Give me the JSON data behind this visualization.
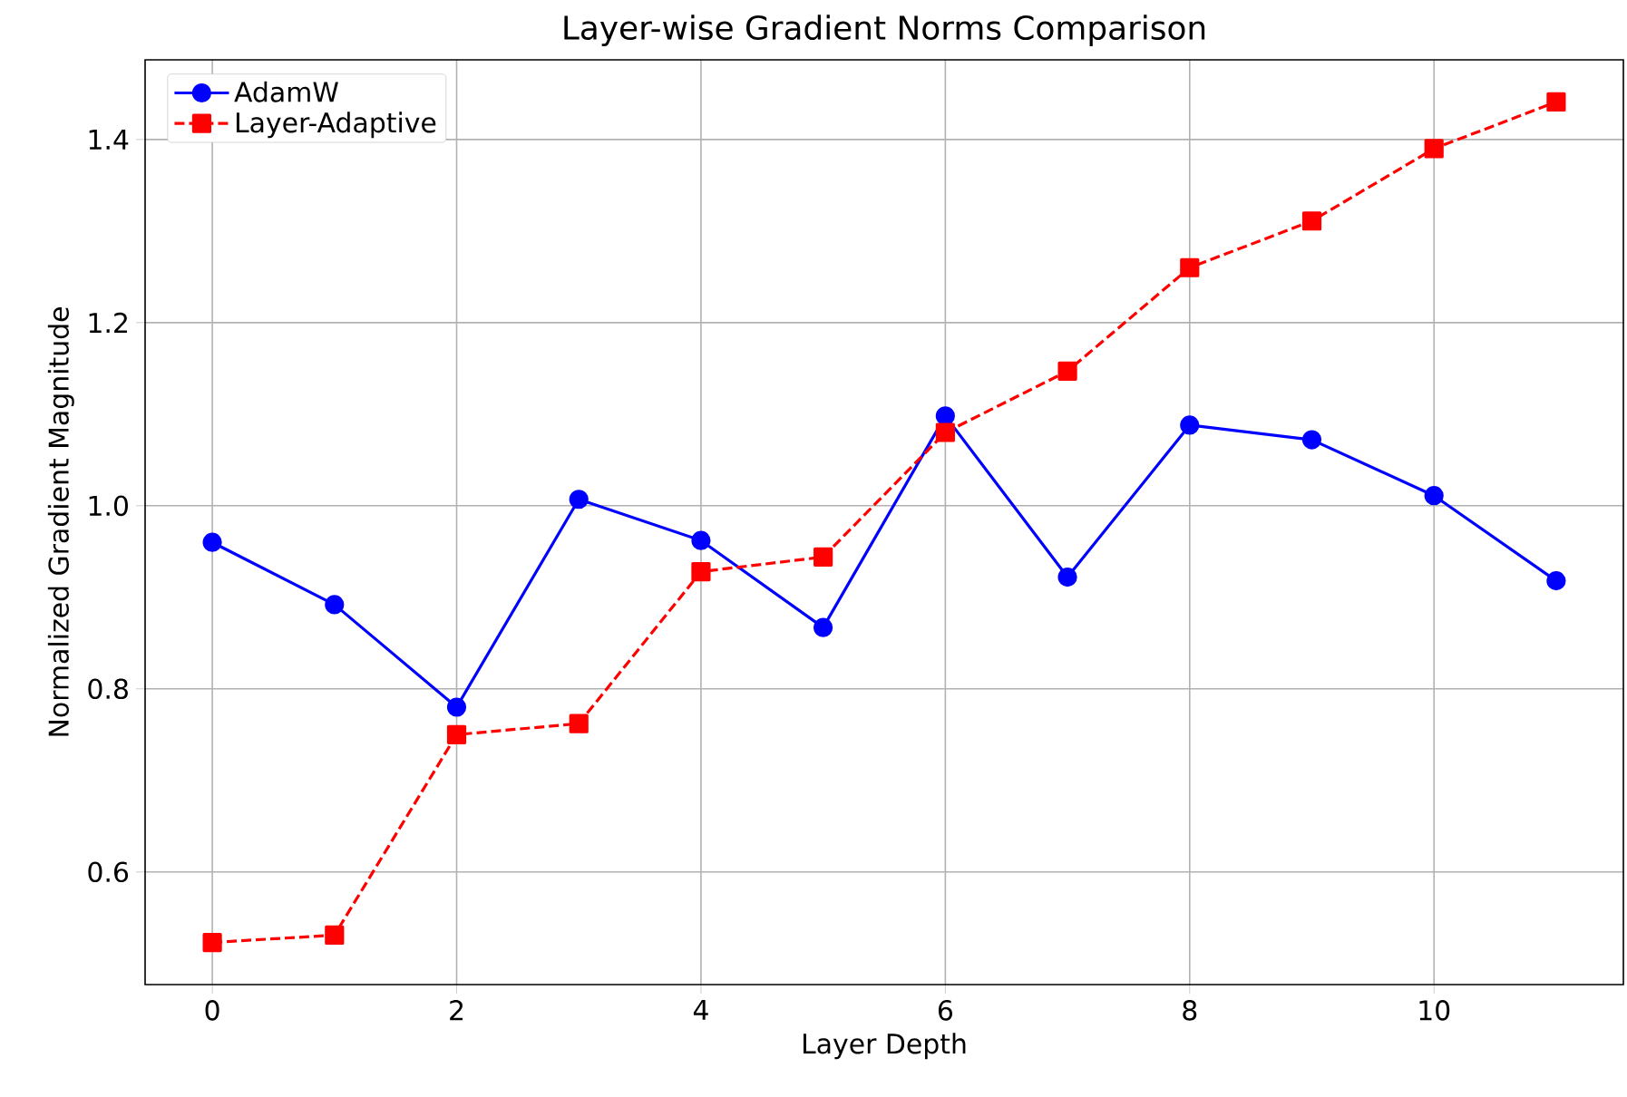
{
  "chart_data": {
    "type": "line",
    "title": "Layer-wise Gradient Norms Comparison",
    "xlabel": "Layer Depth",
    "ylabel": "Normalized Gradient Magnitude",
    "x": [
      0,
      1,
      2,
      3,
      4,
      5,
      6,
      7,
      8,
      9,
      10,
      11
    ],
    "series": [
      {
        "name": "AdamW",
        "color": "#0000ff",
        "marker": "circle",
        "line_style": "solid",
        "values": [
          0.96,
          0.892,
          0.78,
          1.007,
          0.962,
          0.867,
          1.098,
          0.922,
          1.088,
          1.072,
          1.011,
          0.918
        ]
      },
      {
        "name": "Layer-Adaptive",
        "color": "#ff0000",
        "marker": "square",
        "line_style": "dashed",
        "values": [
          0.523,
          0.531,
          0.75,
          0.762,
          0.928,
          0.944,
          1.08,
          1.147,
          1.26,
          1.311,
          1.39,
          1.441
        ]
      }
    ],
    "xlim": [
      -0.55,
      11.55
    ],
    "ylim": [
      0.477,
      1.487
    ],
    "xticks": [
      0,
      2,
      4,
      6,
      8,
      10
    ],
    "yticks": [
      0.6,
      0.8,
      {
        "value": 1.0,
        "label": "1.0"
      },
      1.2,
      1.4
    ],
    "grid": true,
    "legend": "top left"
  }
}
